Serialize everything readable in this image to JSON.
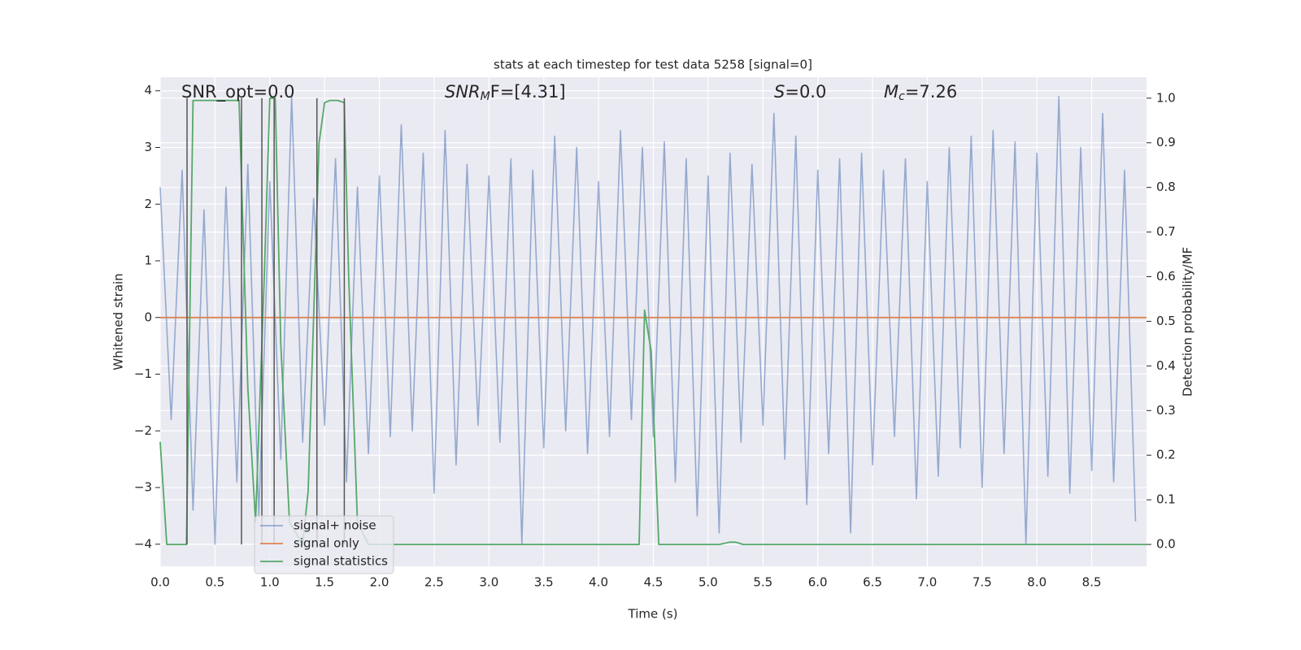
{
  "chart_data": {
    "type": "line",
    "title": "stats at each timestep for test data 5258 [signal=0]",
    "xlabel": "Time (s)",
    "ylabel": "Whitened strain",
    "y2label": "Detection probability/MF",
    "annotations": [
      {
        "main": "SNR_opt=0.0"
      },
      {
        "main": "SNR",
        "sub": "M",
        "rest": "F=[4.31]"
      },
      {
        "main": "S",
        "rest": "=0.0"
      },
      {
        "main": "M",
        "sub": "c",
        "rest": "=7.26"
      }
    ],
    "xlim": [
      0,
      9.0
    ],
    "ylim": [
      -4.39,
      4.24
    ],
    "y2lim": [
      -0.049,
      1.047
    ],
    "xticks": [
      {
        "value": 0,
        "label": "0.0"
      },
      {
        "value": 0.5,
        "label": "0.5"
      },
      {
        "value": 1,
        "label": "1.0"
      },
      {
        "value": 1.5,
        "label": "1.5"
      },
      {
        "value": 2,
        "label": "2.0"
      },
      {
        "value": 2.5,
        "label": "2.5"
      },
      {
        "value": 3,
        "label": "3.0"
      },
      {
        "value": 3.5,
        "label": "3.5"
      },
      {
        "value": 4,
        "label": "4.0"
      },
      {
        "value": 4.5,
        "label": "4.5"
      },
      {
        "value": 5,
        "label": "5.0"
      },
      {
        "value": 5.5,
        "label": "5.5"
      },
      {
        "value": 6,
        "label": "6.0"
      },
      {
        "value": 6.5,
        "label": "6.5"
      },
      {
        "value": 7,
        "label": "7.0"
      },
      {
        "value": 7.5,
        "label": "7.5"
      },
      {
        "value": 8,
        "label": "8.0"
      },
      {
        "value": 8.5,
        "label": "8.5"
      }
    ],
    "yticks": [
      {
        "value": -4,
        "label": "−4"
      },
      {
        "value": -3,
        "label": "−3"
      },
      {
        "value": -2,
        "label": "−2"
      },
      {
        "value": -1,
        "label": "−1"
      },
      0,
      1,
      2,
      3,
      4
    ],
    "y2ticks": [
      {
        "value": 0,
        "label": "0.0"
      },
      {
        "value": 0.1,
        "label": "0.1"
      },
      {
        "value": 0.2,
        "label": "0.2"
      },
      {
        "value": 0.3,
        "label": "0.3"
      },
      {
        "value": 0.4,
        "label": "0.4"
      },
      {
        "value": 0.5,
        "label": "0.5"
      },
      {
        "value": 0.6,
        "label": "0.6"
      },
      {
        "value": 0.7,
        "label": "0.7"
      },
      {
        "value": 0.8,
        "label": "0.8"
      },
      {
        "value": 0.9,
        "label": "0.9"
      },
      {
        "value": 1.0,
        "label": "1.0"
      }
    ],
    "grid": true,
    "legend": "lower left",
    "vlines": [
      0.245,
      0.742,
      0.928,
      1.04,
      1.43,
      1.68
    ],
    "vline_span": [
      0,
      1
    ],
    "vline_color": "#555555",
    "series": [
      {
        "name": "signal+ noise",
        "color": "#4c72b0",
        "x": [
          0,
          0.1,
          0.2,
          0.3,
          0.4,
          0.5,
          0.6,
          0.7,
          0.8,
          0.9,
          1,
          1.1,
          1.2,
          1.3,
          1.4,
          1.5,
          1.6,
          1.7,
          1.8,
          1.9,
          2,
          2.1,
          2.2,
          2.3,
          2.4,
          2.5,
          2.6,
          2.7,
          2.8,
          2.9,
          3,
          3.1,
          3.2,
          3.3,
          3.4,
          3.5,
          3.6,
          3.7,
          3.8,
          3.9,
          4,
          4.1,
          4.2,
          4.3,
          4.4,
          4.5,
          4.6,
          4.7,
          4.8,
          4.9,
          5,
          5.1,
          5.2,
          5.3,
          5.4,
          5.5,
          5.6,
          5.7,
          5.8,
          5.9,
          6,
          6.1,
          6.2,
          6.3,
          6.4,
          6.5,
          6.6,
          6.7,
          6.8,
          6.9,
          7,
          7.1,
          7.2,
          7.3,
          7.4,
          7.5,
          7.6,
          7.7,
          7.8,
          7.9,
          8,
          8.1,
          8.2,
          8.3,
          8.4,
          8.5,
          8.6,
          8.7,
          8.8,
          8.9
        ],
        "values": [
          2.3,
          -1.8,
          2.6,
          -3.4,
          1.9,
          -4.0,
          2.3,
          -2.9,
          2.7,
          -3.5,
          2.4,
          -2.5,
          3.9,
          -2.2,
          2.1,
          -1.9,
          2.8,
          -2.9,
          2.3,
          -2.4,
          2.5,
          -2.1,
          3.4,
          -2.0,
          2.9,
          -3.1,
          3.3,
          -2.6,
          2.7,
          -1.9,
          2.5,
          -2.2,
          2.8,
          -4.0,
          2.6,
          -2.3,
          3.2,
          -2.0,
          3.0,
          -2.4,
          2.4,
          -2.1,
          3.3,
          -1.8,
          3.0,
          -2.1,
          3.1,
          -2.9,
          2.8,
          -3.5,
          2.5,
          -3.8,
          2.9,
          -2.2,
          2.7,
          -1.9,
          3.6,
          -2.5,
          3.2,
          -3.3,
          2.6,
          -2.4,
          2.8,
          -3.8,
          2.9,
          -2.6,
          2.6,
          -2.1,
          2.8,
          -3.2,
          2.4,
          -2.8,
          3.0,
          -2.3,
          3.2,
          -3.0,
          3.3,
          -2.4,
          3.1,
          -4.0,
          2.9,
          -2.8,
          3.9,
          -3.1,
          3.0,
          -2.7,
          3.6,
          -2.9,
          2.6,
          -3.6
        ]
      },
      {
        "name": "signal only",
        "color": "#dd8452",
        "x": [
          0,
          9.0
        ],
        "values": [
          0,
          0
        ]
      },
      {
        "name": "signal statistics",
        "color": "#55a868",
        "axis": "y2",
        "x": [
          0,
          0.06,
          0.24,
          0.3,
          0.45,
          0.72,
          0.8,
          0.87,
          0.95,
          1.0,
          1.05,
          1.1,
          1.18,
          1.3,
          1.35,
          1.45,
          1.5,
          1.55,
          1.62,
          1.68,
          1.72,
          1.8,
          1.9,
          4.37,
          4.42,
          4.48,
          4.55,
          5.1,
          5.2,
          5.25,
          5.32,
          9.0
        ],
        "values": [
          0.23,
          0,
          0,
          0.995,
          0.995,
          0.995,
          0.35,
          0.05,
          0.6,
          1.0,
          1.0,
          0.45,
          0.05,
          0.0,
          0.12,
          0.9,
          0.99,
          0.995,
          0.995,
          0.99,
          0.6,
          0.05,
          0.0,
          0.0,
          0.525,
          0.433,
          0.0,
          0.0,
          0.005,
          0.005,
          0.0,
          0.0
        ]
      }
    ]
  }
}
